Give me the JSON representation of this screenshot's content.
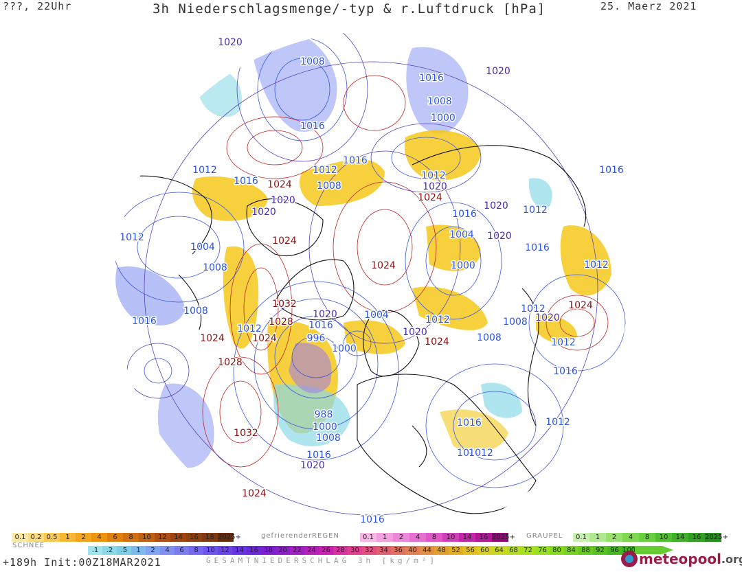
{
  "header": {
    "run_label": "???, 22Uhr",
    "title": "3h Niederschlagsmenge/-typ & r.Luftdruck [hPa]",
    "date": "25. Maerz 2021"
  },
  "isobar_labels": [
    {
      "text": "1020",
      "color": "#4a2bb0"
    },
    {
      "text": "1008",
      "color": "#2b55e0"
    },
    {
      "text": "1016",
      "color": "#2b55e0"
    },
    {
      "text": "1016",
      "color": "#2b55e0"
    },
    {
      "text": "1020",
      "color": "#4a2bb0"
    },
    {
      "text": "1008",
      "color": "#2b55e0"
    },
    {
      "text": "1000",
      "color": "#2b55e0"
    },
    {
      "text": "1012",
      "color": "#2b55e0"
    },
    {
      "text": "1016",
      "color": "#2b55e0"
    },
    {
      "text": "1016",
      "color": "#2b55e0"
    },
    {
      "text": "1024",
      "color": "#8b1010"
    },
    {
      "text": "1012",
      "color": "#2b55e0"
    },
    {
      "text": "1008",
      "color": "#2b55e0"
    },
    {
      "text": "1016",
      "color": "#2b55e0"
    },
    {
      "text": "1012",
      "color": "#2b55e0"
    },
    {
      "text": "1020",
      "color": "#4a2bb0"
    },
    {
      "text": "1024",
      "color": "#8b1010"
    },
    {
      "text": "1020",
      "color": "#4a2bb0"
    },
    {
      "text": "1020",
      "color": "#4a2bb0"
    },
    {
      "text": "1012",
      "color": "#2b55e0"
    },
    {
      "text": "1016",
      "color": "#2b55e0"
    },
    {
      "text": "1020",
      "color": "#4a2bb0"
    },
    {
      "text": "1012",
      "color": "#2b55e0"
    },
    {
      "text": "1004",
      "color": "#2b55e0"
    },
    {
      "text": "1024",
      "color": "#8b1010"
    },
    {
      "text": "1004",
      "color": "#2b55e0"
    },
    {
      "text": "1020",
      "color": "#4a2bb0"
    },
    {
      "text": "1016",
      "color": "#2b55e0"
    },
    {
      "text": "1012",
      "color": "#2b55e0"
    },
    {
      "text": "1008",
      "color": "#2b55e0"
    },
    {
      "text": "1024",
      "color": "#8b1010"
    },
    {
      "text": "1000",
      "color": "#2b55e0"
    },
    {
      "text": "1012",
      "color": "#2b55e0"
    },
    {
      "text": "1032",
      "color": "#8b1010"
    },
    {
      "text": "1008",
      "color": "#2b55e0"
    },
    {
      "text": "1016",
      "color": "#2b55e0"
    },
    {
      "text": "1028",
      "color": "#8b1010"
    },
    {
      "text": "1016",
      "color": "#2b55e0"
    },
    {
      "text": "1020",
      "color": "#4a2bb0"
    },
    {
      "text": "1004",
      "color": "#2b55e0"
    },
    {
      "text": "1012",
      "color": "#2b55e0"
    },
    {
      "text": "1012",
      "color": "#2b55e0"
    },
    {
      "text": "1024",
      "color": "#8b1010"
    },
    {
      "text": "1008",
      "color": "#2b55e0"
    },
    {
      "text": "1020",
      "color": "#4a2bb0"
    },
    {
      "text": "1020",
      "color": "#4a2bb0"
    },
    {
      "text": "1024",
      "color": "#8b1010"
    },
    {
      "text": "1024",
      "color": "#8b1010"
    },
    {
      "text": "996",
      "color": "#2b55e0"
    },
    {
      "text": "1012",
      "color": "#2b55e0"
    },
    {
      "text": "1008",
      "color": "#2b55e0"
    },
    {
      "text": "1000",
      "color": "#2b55e0"
    },
    {
      "text": "1024",
      "color": "#8b1010"
    },
    {
      "text": "1012",
      "color": "#2b55e0"
    },
    {
      "text": "1028",
      "color": "#8b1010"
    },
    {
      "text": "1016",
      "color": "#2b55e0"
    },
    {
      "text": "988",
      "color": "#2b55e0"
    },
    {
      "text": "1000",
      "color": "#2b55e0"
    },
    {
      "text": "1008",
      "color": "#2b55e0"
    },
    {
      "text": "1016",
      "color": "#2b55e0"
    },
    {
      "text": "1032",
      "color": "#8b1010"
    },
    {
      "text": "1020",
      "color": "#4a2bb0"
    },
    {
      "text": "1016",
      "color": "#2b55e0"
    },
    {
      "text": "1012",
      "color": "#2b55e0"
    },
    {
      "text": "1012",
      "color": "#2b55e0"
    },
    {
      "text": "1024",
      "color": "#8b1010"
    },
    {
      "text": "1016",
      "color": "#2b55e0"
    }
  ],
  "legend": {
    "snow_label": "SCHNEE",
    "snow_scale": [
      "0.1",
      "0.2",
      "0.5",
      "1",
      "2",
      "4",
      "6",
      "8",
      "10",
      "12",
      "14",
      "16",
      "18",
      "2025+"
    ],
    "freezing_rain_label": "gefrierenderREGEN",
    "freezing_rain_scale": [
      "0.1",
      "1",
      "2",
      "4",
      "8",
      "10",
      "14",
      "16",
      "2025+"
    ],
    "graupel_label": "GRAUPEL",
    "graupel_scale": [
      "0.1",
      "1",
      "2",
      "4",
      "8",
      "10",
      "14",
      "16",
      "2025+"
    ],
    "total_scale": [
      ".1",
      ".2",
      ".5",
      "1",
      "2",
      "4",
      "6",
      "8",
      "10",
      "12",
      "14",
      "16",
      "18",
      "20",
      "22",
      "24",
      "26",
      "28",
      "30",
      "32",
      "34",
      "36",
      "40",
      "44",
      "48",
      "52",
      "56",
      "60",
      "64",
      "68",
      "72",
      "76",
      "80",
      "84",
      "88",
      "92",
      "96",
      "100"
    ]
  },
  "footer": {
    "forecast": "+189h Init:00Z18MAR2021",
    "total_label": "GESAMTNIEDERSCHLAG 3h [kg/m²]",
    "logo_text": "meteopool",
    "logo_tld": ".org"
  }
}
